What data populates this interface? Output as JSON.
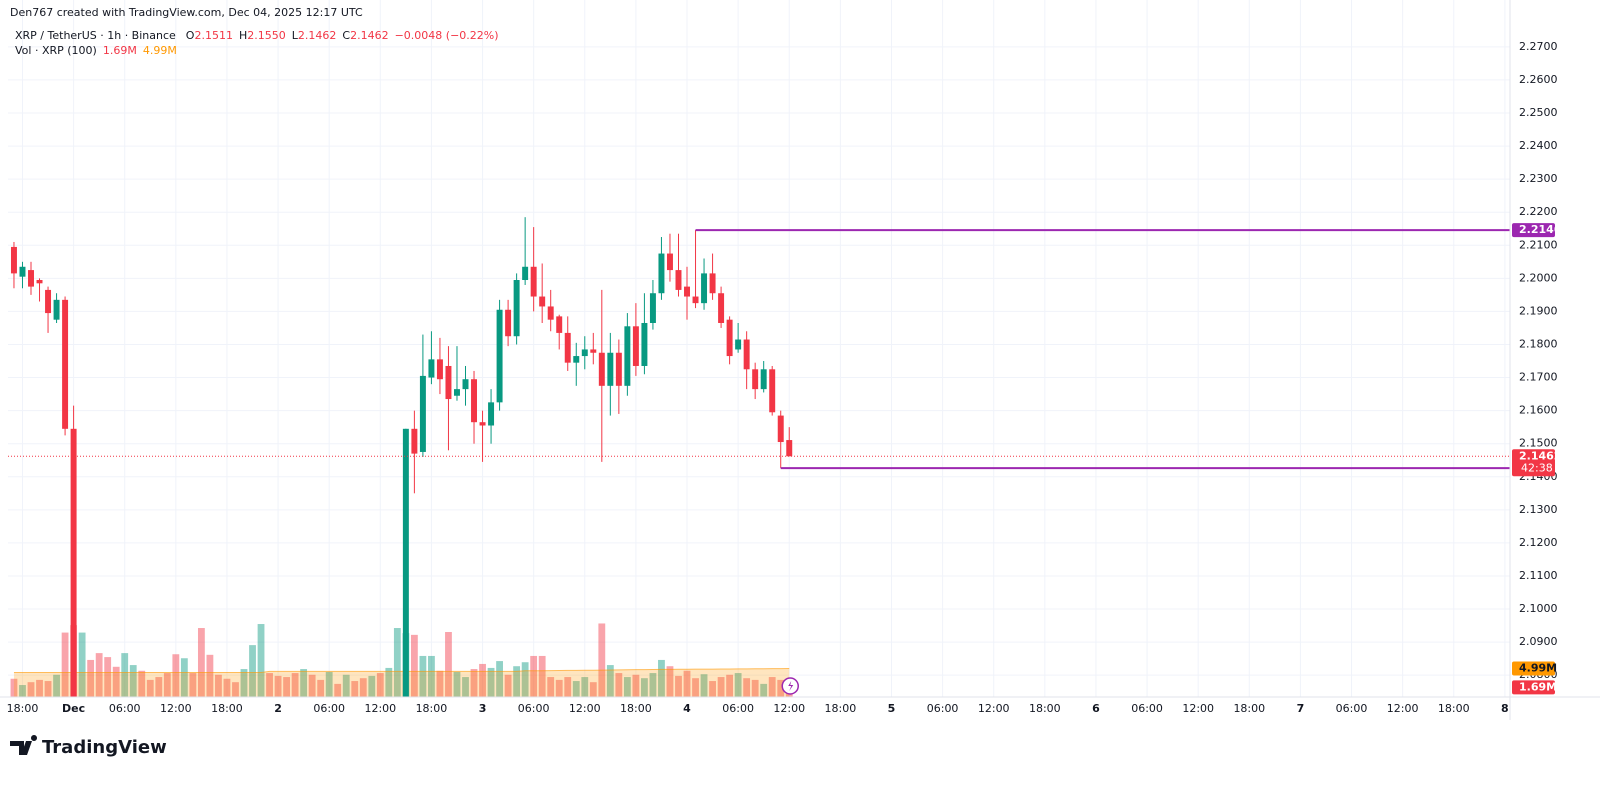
{
  "chart_data": {
    "type": "candlestick",
    "header": "Den767 created with TradingView.com, Dec 04, 2025 12:17 UTC",
    "symbol": "XRP / TetherUS · 1h · Binance",
    "legend": [
      {
        "key": "O",
        "text": "2.1511"
      },
      {
        "key": "H",
        "text": "2.1550"
      },
      {
        "key": "L",
        "text": "2.1462"
      },
      {
        "key": "C",
        "text": "2.1462"
      }
    ],
    "change": "−0.0048 (−0.22%)",
    "up_color": "#089981",
    "down_color": "#f23645",
    "grid": true,
    "xlim": [
      -0.7,
      175.6
    ],
    "ylim": [
      2.0734,
      2.2751
    ],
    "yticks": [
      {
        "value": 2.08,
        "label": "2.0800"
      },
      {
        "value": 2.09,
        "label": "2.0900"
      },
      {
        "value": 2.1,
        "label": "2.1000"
      },
      {
        "value": 2.11,
        "label": "2.1100"
      },
      {
        "value": 2.12,
        "label": "2.1200"
      },
      {
        "value": 2.13,
        "label": "2.1300"
      },
      {
        "value": 2.14,
        "label": "2.1400"
      },
      {
        "value": 2.15,
        "label": "2.1500"
      },
      {
        "value": 2.16,
        "label": "2.1600"
      },
      {
        "value": 2.17,
        "label": "2.1700"
      },
      {
        "value": 2.18,
        "label": "2.1800"
      },
      {
        "value": 2.19,
        "label": "2.1900"
      },
      {
        "value": 2.2,
        "label": "2.2000"
      },
      {
        "value": 2.21,
        "label": "2.2100"
      },
      {
        "value": 2.22,
        "label": "2.2200"
      },
      {
        "value": 2.23,
        "label": "2.2300"
      },
      {
        "value": 2.24,
        "label": "2.2400"
      },
      {
        "value": 2.25,
        "label": "2.2500"
      },
      {
        "value": 2.26,
        "label": "2.2600"
      },
      {
        "value": 2.27,
        "label": "2.2700"
      }
    ],
    "xticks": [
      {
        "value": 1,
        "label": "18:00"
      },
      {
        "value": 7,
        "label": "Dec"
      },
      {
        "value": 13,
        "label": "06:00"
      },
      {
        "value": 19,
        "label": "12:00"
      },
      {
        "value": 25,
        "label": "18:00"
      },
      {
        "value": 31,
        "label": "2"
      },
      {
        "value": 37,
        "label": "06:00"
      },
      {
        "value": 43,
        "label": "12:00"
      },
      {
        "value": 49,
        "label": "18:00"
      },
      {
        "value": 55,
        "label": "3"
      },
      {
        "value": 61,
        "label": "06:00"
      },
      {
        "value": 67,
        "label": "12:00"
      },
      {
        "value": 73,
        "label": "18:00"
      },
      {
        "value": 79,
        "label": "4"
      },
      {
        "value": 85,
        "label": "06:00"
      },
      {
        "value": 91,
        "label": "12:00"
      },
      {
        "value": 97,
        "label": "18:00"
      },
      {
        "value": 103,
        "label": "5"
      },
      {
        "value": 109,
        "label": "06:00"
      },
      {
        "value": 115,
        "label": "12:00"
      },
      {
        "value": 121,
        "label": "18:00"
      },
      {
        "value": 127,
        "label": "6"
      },
      {
        "value": 133,
        "label": "06:00"
      },
      {
        "value": 139,
        "label": "12:00"
      },
      {
        "value": 145,
        "label": "18:00"
      },
      {
        "value": 151,
        "label": "7"
      },
      {
        "value": 157,
        "label": "06:00"
      },
      {
        "value": 163,
        "label": "12:00"
      },
      {
        "value": 169,
        "label": "18:00"
      },
      {
        "value": 175,
        "label": "8"
      }
    ],
    "candles": [
      [
        2.2095,
        2.211,
        2.197,
        2.2015
      ],
      [
        2.2005,
        2.205,
        2.197,
        2.2035
      ],
      [
        2.2025,
        2.205,
        2.195,
        2.1975
      ],
      [
        2.1995,
        2.2,
        2.193,
        2.1985
      ],
      [
        2.1965,
        2.1975,
        2.1835,
        2.1895
      ],
      [
        2.1875,
        2.1955,
        2.1865,
        2.1935
      ],
      [
        2.1935,
        2.1945,
        2.1525,
        2.1545
      ],
      [
        2.1545,
        2.1615,
        2.066,
        2.07
      ],
      null,
      null,
      null,
      null,
      null,
      null,
      null,
      null,
      null,
      null,
      null,
      null,
      null,
      null,
      null,
      null,
      null,
      null,
      null,
      null,
      null,
      null,
      null,
      null,
      null,
      null,
      null,
      null,
      null,
      null,
      null,
      null,
      null,
      null,
      null,
      null,
      null,
      null,
      [
        2.07,
        2.1545,
        2.065,
        2.1545
      ],
      [
        2.1545,
        2.16,
        2.135,
        2.147
      ],
      [
        2.1475,
        2.183,
        2.146,
        2.1705
      ],
      [
        2.17,
        2.184,
        2.168,
        2.1755
      ],
      [
        2.1755,
        2.182,
        2.165,
        2.1695
      ],
      [
        2.1735,
        2.1795,
        2.148,
        2.1635
      ],
      [
        2.1645,
        2.1795,
        2.163,
        2.1665
      ],
      [
        2.1665,
        2.1735,
        2.1615,
        2.1695
      ],
      [
        2.1695,
        2.172,
        2.15,
        2.1565
      ],
      [
        2.1565,
        2.16,
        2.1445,
        2.1555
      ],
      [
        2.1555,
        2.1665,
        2.15,
        2.1625
      ],
      [
        2.1625,
        2.1935,
        2.16,
        2.1905
      ],
      [
        2.1905,
        2.1935,
        2.1795,
        2.1825
      ],
      [
        2.1825,
        2.2015,
        2.18,
        2.1995
      ],
      [
        2.1995,
        2.2185,
        2.198,
        2.2035
      ],
      [
        2.2035,
        2.2155,
        2.19,
        2.1945
      ],
      [
        2.1945,
        2.2045,
        2.1865,
        2.1915
      ],
      [
        2.1915,
        2.1965,
        2.184,
        2.1875
      ],
      [
        2.1885,
        2.189,
        2.1785,
        2.1835
      ],
      [
        2.1835,
        2.1885,
        2.172,
        2.1745
      ],
      [
        2.1745,
        2.1805,
        2.1675,
        2.1765
      ],
      [
        2.1765,
        2.1825,
        2.1725,
        2.1785
      ],
      [
        2.1785,
        2.1835,
        2.174,
        2.1775
      ],
      [
        2.1775,
        2.1965,
        2.1445,
        2.1675
      ],
      [
        2.1675,
        2.1835,
        2.1585,
        2.1775
      ],
      [
        2.1775,
        2.1815,
        2.159,
        2.1675
      ],
      [
        2.1675,
        2.1895,
        2.1645,
        2.1855
      ],
      [
        2.1855,
        2.1925,
        2.1705,
        2.1735
      ],
      [
        2.1735,
        2.1955,
        2.171,
        2.1865
      ],
      [
        2.1865,
        2.1995,
        2.1845,
        2.1955
      ],
      [
        2.1955,
        2.2125,
        2.1935,
        2.2075
      ],
      [
        2.2075,
        2.2135,
        2.199,
        2.2025
      ],
      [
        2.2025,
        2.2135,
        2.1945,
        2.1965
      ],
      [
        2.1975,
        2.2035,
        2.1875,
        2.1945
      ],
      [
        2.1945,
        2.2146,
        2.191,
        2.1925
      ],
      [
        2.1925,
        2.206,
        2.1905,
        2.2015
      ],
      [
        2.2015,
        2.2075,
        2.1935,
        2.1955
      ],
      [
        2.1955,
        2.1975,
        2.185,
        2.1865
      ],
      [
        2.1875,
        2.1885,
        2.174,
        2.1765
      ],
      [
        2.1785,
        2.1865,
        2.1775,
        2.1815
      ],
      [
        2.1815,
        2.184,
        2.1665,
        2.1725
      ],
      [
        2.1725,
        2.1745,
        2.1635,
        2.1665
      ],
      [
        2.1665,
        2.175,
        2.1655,
        2.1725
      ],
      [
        2.1725,
        2.1735,
        2.1585,
        2.1595
      ],
      [
        2.1585,
        2.16,
        2.1426,
        2.1505
      ],
      [
        2.1511,
        2.155,
        2.1462,
        2.1462
      ]
    ],
    "volume": {
      "name": "Vol · XRP (100)",
      "ylim": [
        0,
        117
      ],
      "values": [
        3.2,
        2.1,
        2.6,
        3.0,
        2.8,
        3.9,
        11.3,
        12.6,
        11.3,
        6.5,
        7.7,
        7.0,
        5.3,
        7.7,
        5.6,
        4.6,
        3.0,
        3.5,
        4.2,
        7.5,
        6.8,
        4.2,
        12.1,
        7.4,
        3.9,
        3.2,
        2.6,
        4.9,
        9.1,
        12.8,
        4.2,
        3.7,
        3.5,
        4.2,
        4.9,
        3.9,
        3.0,
        4.4,
        2.3,
        3.9,
        2.8,
        3.3,
        3.7,
        4.2,
        5.1,
        12.1,
        11.2,
        10.9,
        7.2,
        7.2,
        4.6,
        11.4,
        4.4,
        3.5,
        4.9,
        5.8,
        5.1,
        6.3,
        3.9,
        5.4,
        6.1,
        7.2,
        7.2,
        3.5,
        3.0,
        3.5,
        2.8,
        3.5,
        2.6,
        12.9,
        5.6,
        4.2,
        3.5,
        3.9,
        3.3,
        4.2,
        6.5,
        5.4,
        3.7,
        4.6,
        3.3,
        4.0,
        2.8,
        3.5,
        3.9,
        4.2,
        3.3,
        3.0,
        2.3,
        3.5,
        3.0,
        1.69
      ],
      "colors": [
        "#f23645",
        "#089981",
        "#f23645",
        "#f23645",
        "#f23645",
        "#089981",
        "#f23645",
        "#f23645",
        "#089981",
        "#f23645",
        "#f23645",
        "#f23645",
        "#f23645",
        "#089981",
        "#089981",
        "#f23645",
        "#f23645",
        "#f23645",
        "#f23645",
        "#f23645",
        "#089981",
        "#f23645",
        "#f23645",
        "#f23645",
        "#f23645",
        "#f23645",
        "#f23645",
        "#089981",
        "#089981",
        "#089981",
        "#f23645",
        "#f23645",
        "#f23645",
        "#f23645",
        "#089981",
        "#f23645",
        "#f23645",
        "#089981",
        "#f23645",
        "#089981",
        "#f23645",
        "#f23645",
        "#089981",
        "#f23645",
        "#089981",
        "#089981",
        "#089981",
        "#f23645",
        "#089981",
        "#089981",
        "#f23645",
        "#f23645",
        "#089981",
        "#089981",
        "#f23645",
        "#f23645",
        "#089981",
        "#089981",
        "#f23645",
        "#089981",
        "#089981",
        "#f23645",
        "#f23645",
        "#f23645",
        "#f23645",
        "#f23645",
        "#089981",
        "#089981",
        "#f23645",
        "#f23645",
        "#089981",
        "#f23645",
        "#089981",
        "#f23645",
        "#089981",
        "#089981",
        "#089981",
        "#f23645",
        "#f23645",
        "#f23645",
        "#f23645",
        "#089981",
        "#f23645",
        "#f23645",
        "#f23645",
        "#089981",
        "#f23645",
        "#f23645",
        "#089981",
        "#f23645",
        "#f23645",
        "#f23645"
      ],
      "last_label": "1.69M",
      "ma": [
        4.3,
        4.3,
        4.3,
        4.3,
        4.3,
        4.3,
        4.3,
        4.3,
        4.3,
        4.3,
        4.3,
        4.3,
        4.3,
        4.3,
        4.3,
        4.3,
        4.3,
        4.3,
        4.3,
        4.3,
        4.3,
        4.3,
        4.3,
        4.3,
        4.3,
        4.3,
        4.3,
        4.3,
        4.3,
        4.3,
        4.5,
        4.5,
        4.5,
        4.5,
        4.5,
        4.5,
        4.5,
        4.5,
        4.5,
        4.5,
        4.5,
        4.5,
        4.5,
        4.5,
        4.5,
        4.5,
        4.5,
        4.5,
        4.5,
        4.5,
        4.5,
        4.5,
        4.5,
        4.5,
        4.5,
        4.5,
        4.5,
        4.5,
        4.5,
        4.5,
        4.6,
        4.6,
        4.6,
        4.62,
        4.64,
        4.66,
        4.68,
        4.7,
        4.7,
        4.72,
        4.74,
        4.76,
        4.78,
        4.8,
        4.8,
        4.82,
        4.84,
        4.85,
        4.86,
        4.87,
        4.88,
        4.89,
        4.9,
        4.91,
        4.92,
        4.93,
        4.94,
        4.95,
        4.96,
        4.97,
        4.98,
        4.99
      ],
      "ma_color": "#ff9800",
      "ma_last_label": "4.99M"
    },
    "levels": [
      {
        "value": 2.2146,
        "start": 80,
        "color": "#9c27b0"
      },
      {
        "value": 2.1426,
        "start": 90,
        "color": "#9c27b0"
      }
    ],
    "countdown": "42:38"
  },
  "brand": "TradingView"
}
